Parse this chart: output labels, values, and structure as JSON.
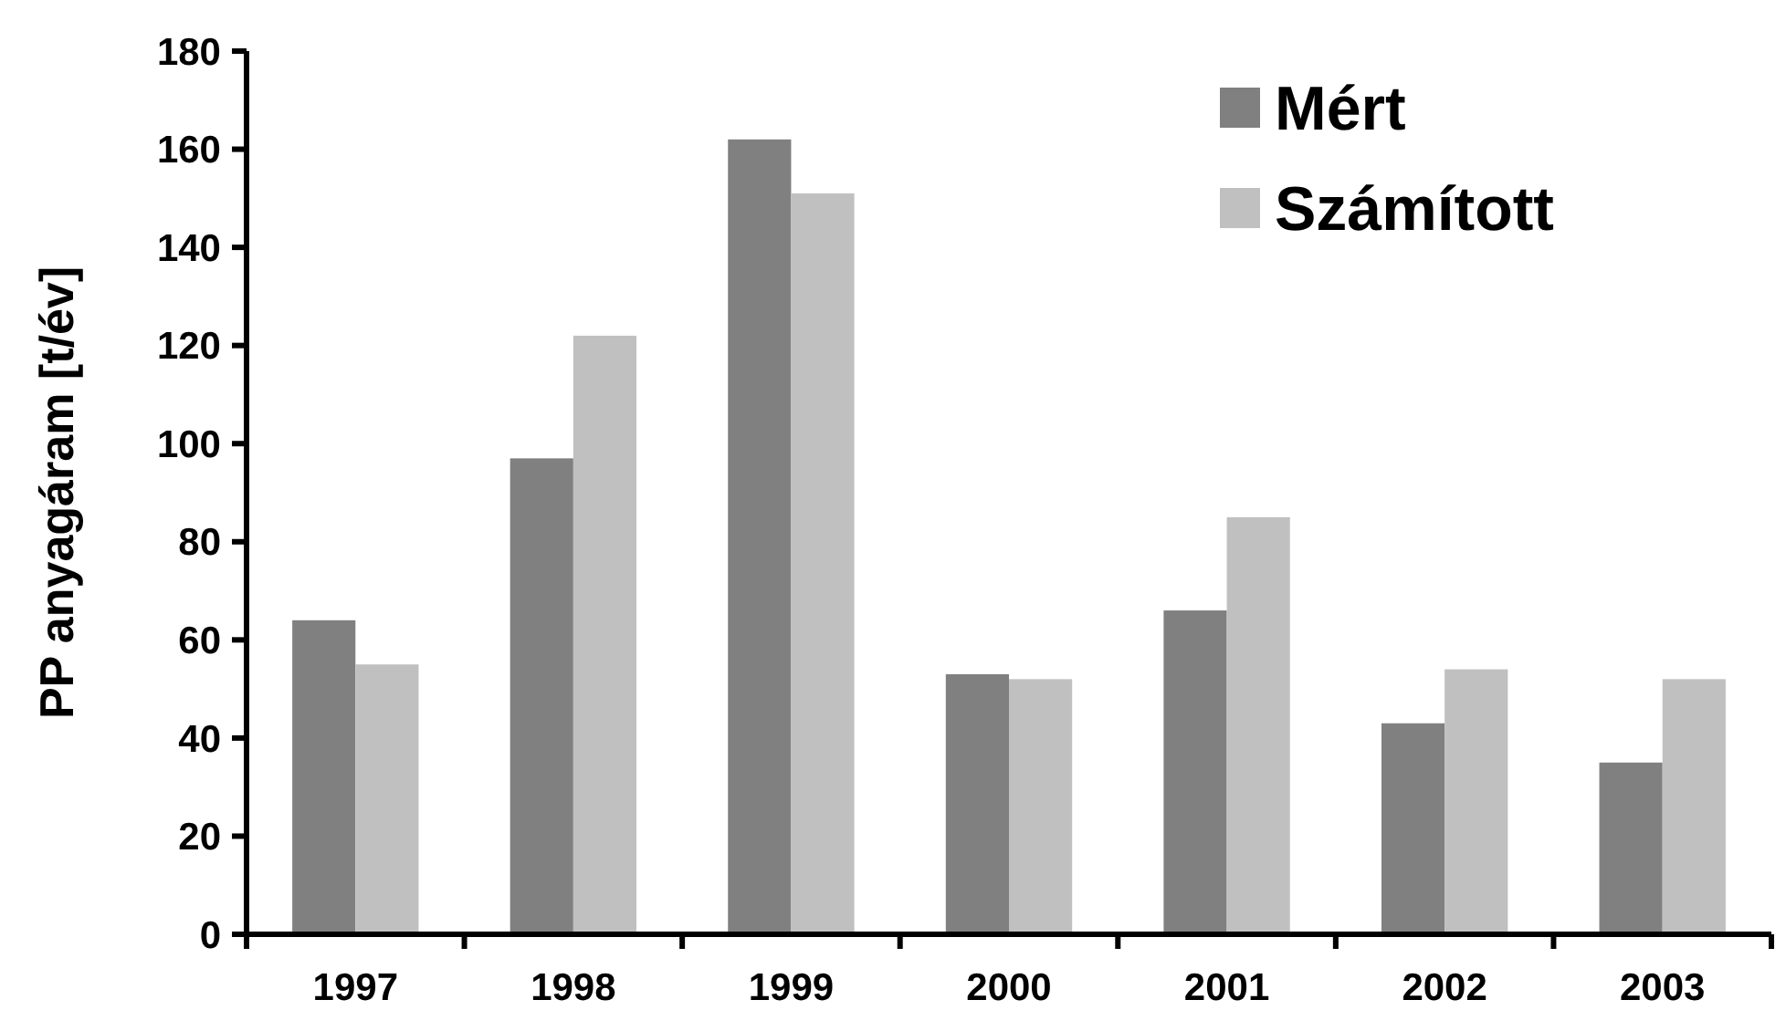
{
  "chart_data": {
    "type": "bar",
    "ylabel": "PP anyagáram [t/év]",
    "categories": [
      "1997",
      "1998",
      "1999",
      "2000",
      "2001",
      "2002",
      "2003"
    ],
    "series": [
      {
        "name": "Mért",
        "color": "#808080",
        "values": [
          64,
          97,
          162,
          53,
          66,
          43,
          35
        ]
      },
      {
        "name": "Számított",
        "color": "#c0c0c0",
        "values": [
          55,
          122,
          151,
          52,
          85,
          54,
          52
        ]
      }
    ],
    "ylim": [
      0,
      180
    ],
    "yticks": [
      0,
      20,
      40,
      60,
      80,
      100,
      120,
      140,
      160,
      180
    ],
    "legend": "top right",
    "grid": false
  }
}
